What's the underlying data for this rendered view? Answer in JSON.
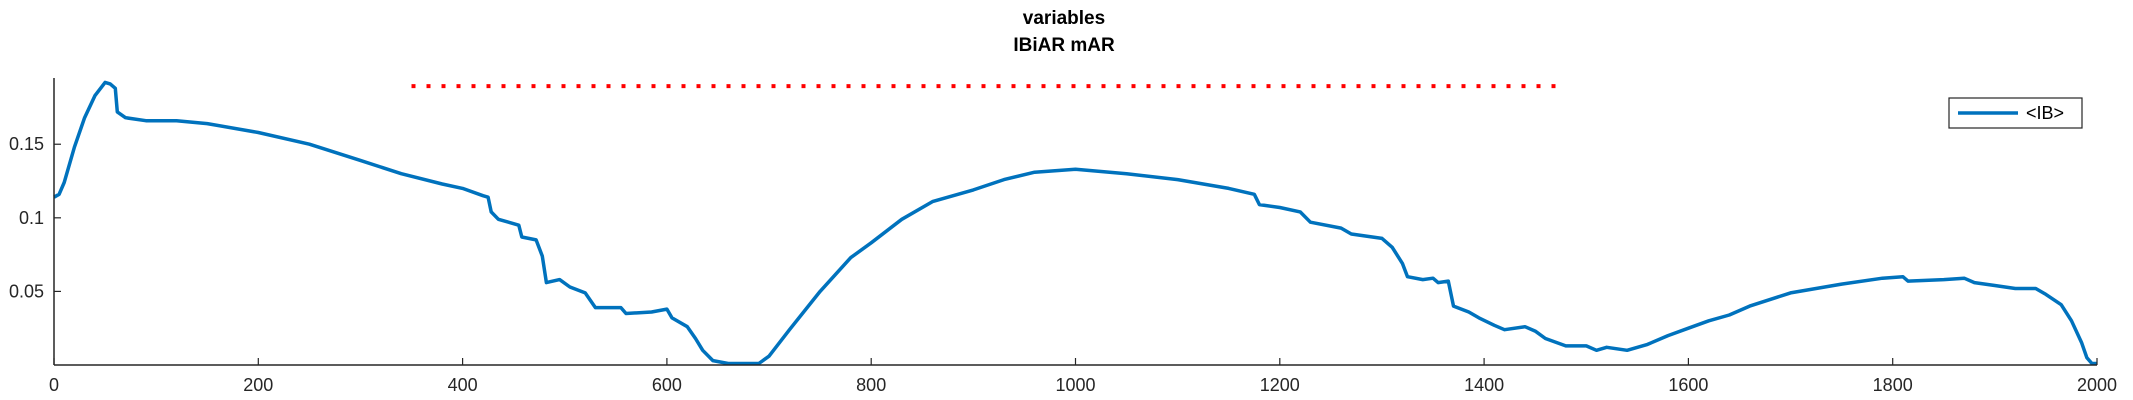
{
  "chart_data": {
    "type": "line",
    "title": [
      "variables",
      "IBiAR mAR"
    ],
    "xlabel": "",
    "ylabel": "",
    "xlim": [
      0,
      2000
    ],
    "ylim": [
      0,
      0.195
    ],
    "x_ticks": [
      0,
      200,
      400,
      600,
      800,
      1000,
      1200,
      1400,
      1600,
      1800,
      2000
    ],
    "y_ticks": [
      0.05,
      0.1,
      0.15
    ],
    "x_tick_labels": [
      "0",
      "200",
      "400",
      "600",
      "800",
      "1000",
      "1200",
      "1400",
      "1600",
      "1800",
      "2000"
    ],
    "y_tick_labels": [
      "0.05",
      "0.1",
      "0.15"
    ],
    "grid": false,
    "legend": {
      "placement": "top-right",
      "entries": [
        "<IB>"
      ]
    },
    "series": [
      {
        "name": "<IB>",
        "color": "#0072BD",
        "style": "solid",
        "points": [
          [
            0,
            0.114
          ],
          [
            5,
            0.116
          ],
          [
            10,
            0.124
          ],
          [
            20,
            0.148
          ],
          [
            30,
            0.168
          ],
          [
            40,
            0.183
          ],
          [
            50,
            0.192
          ],
          [
            55,
            0.191
          ],
          [
            60,
            0.188
          ],
          [
            62,
            0.172
          ],
          [
            70,
            0.168
          ],
          [
            90,
            0.166
          ],
          [
            120,
            0.166
          ],
          [
            150,
            0.164
          ],
          [
            200,
            0.158
          ],
          [
            250,
            0.15
          ],
          [
            300,
            0.139
          ],
          [
            340,
            0.13
          ],
          [
            380,
            0.123
          ],
          [
            400,
            0.12
          ],
          [
            420,
            0.115
          ],
          [
            425,
            0.114
          ],
          [
            428,
            0.104
          ],
          [
            435,
            0.099
          ],
          [
            455,
            0.095
          ],
          [
            458,
            0.087
          ],
          [
            472,
            0.085
          ],
          [
            478,
            0.074
          ],
          [
            482,
            0.056
          ],
          [
            495,
            0.058
          ],
          [
            505,
            0.053
          ],
          [
            520,
            0.049
          ],
          [
            530,
            0.039
          ],
          [
            555,
            0.039
          ],
          [
            560,
            0.035
          ],
          [
            585,
            0.036
          ],
          [
            600,
            0.038
          ],
          [
            605,
            0.032
          ],
          [
            620,
            0.026
          ],
          [
            628,
            0.018
          ],
          [
            635,
            0.01
          ],
          [
            645,
            0.003
          ],
          [
            660,
            0.001
          ],
          [
            690,
            0.001
          ],
          [
            700,
            0.006
          ],
          [
            720,
            0.024
          ],
          [
            750,
            0.05
          ],
          [
            780,
            0.073
          ],
          [
            800,
            0.083
          ],
          [
            830,
            0.099
          ],
          [
            860,
            0.111
          ],
          [
            900,
            0.119
          ],
          [
            930,
            0.126
          ],
          [
            960,
            0.131
          ],
          [
            1000,
            0.133
          ],
          [
            1050,
            0.13
          ],
          [
            1100,
            0.126
          ],
          [
            1150,
            0.12
          ],
          [
            1175,
            0.116
          ],
          [
            1180,
            0.109
          ],
          [
            1200,
            0.107
          ],
          [
            1220,
            0.104
          ],
          [
            1230,
            0.097
          ],
          [
            1260,
            0.093
          ],
          [
            1270,
            0.089
          ],
          [
            1300,
            0.086
          ],
          [
            1310,
            0.08
          ],
          [
            1320,
            0.069
          ],
          [
            1325,
            0.06
          ],
          [
            1340,
            0.058
          ],
          [
            1350,
            0.059
          ],
          [
            1355,
            0.056
          ],
          [
            1365,
            0.057
          ],
          [
            1370,
            0.04
          ],
          [
            1385,
            0.036
          ],
          [
            1395,
            0.032
          ],
          [
            1410,
            0.027
          ],
          [
            1420,
            0.024
          ],
          [
            1440,
            0.026
          ],
          [
            1450,
            0.023
          ],
          [
            1460,
            0.018
          ],
          [
            1480,
            0.013
          ],
          [
            1500,
            0.013
          ],
          [
            1510,
            0.01
          ],
          [
            1520,
            0.012
          ],
          [
            1540,
            0.01
          ],
          [
            1560,
            0.014
          ],
          [
            1580,
            0.02
          ],
          [
            1600,
            0.025
          ],
          [
            1620,
            0.03
          ],
          [
            1640,
            0.034
          ],
          [
            1660,
            0.04
          ],
          [
            1700,
            0.049
          ],
          [
            1750,
            0.055
          ],
          [
            1790,
            0.059
          ],
          [
            1810,
            0.06
          ],
          [
            1815,
            0.057
          ],
          [
            1850,
            0.058
          ],
          [
            1870,
            0.059
          ],
          [
            1880,
            0.056
          ],
          [
            1900,
            0.054
          ],
          [
            1920,
            0.052
          ],
          [
            1940,
            0.052
          ],
          [
            1950,
            0.048
          ],
          [
            1965,
            0.041
          ],
          [
            1975,
            0.03
          ],
          [
            1985,
            0.015
          ],
          [
            1990,
            0.005
          ],
          [
            1995,
            0.001
          ],
          [
            2000,
            0.001
          ]
        ]
      },
      {
        "name": "",
        "color": "#FF0000",
        "style": "dotted",
        "points": [
          [
            350,
            0.1895
          ],
          [
            1480,
            0.1895
          ]
        ]
      }
    ]
  }
}
